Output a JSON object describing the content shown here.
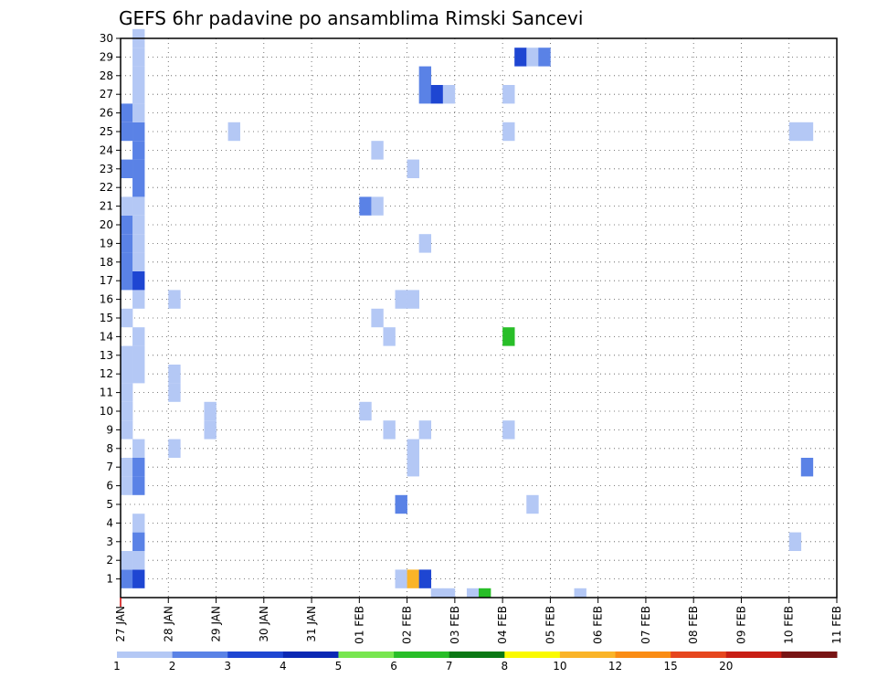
{
  "chart_data": {
    "type": "heatmap",
    "title": "GEFS 6hr padavine po ansamblima Rimski Sancevi",
    "x_tick_labels": [
      "27 JAN",
      "28 JAN",
      "29 JAN",
      "30 JAN",
      "31 JAN",
      "01 FEB",
      "02 FEB",
      "03 FEB",
      "04 FEB",
      "05 FEB",
      "06 FEB",
      "07 FEB",
      "08 FEB",
      "09 FEB",
      "10 FEB",
      "11 FEB"
    ],
    "y_tick_labels": [
      "1",
      "2",
      "3",
      "4",
      "5",
      "6",
      "7",
      "8",
      "9",
      "10",
      "11",
      "12",
      "13",
      "14",
      "15",
      "16",
      "17",
      "18",
      "19",
      "20",
      "21",
      "22",
      "23",
      "24",
      "25",
      "26",
      "27",
      "28",
      "29",
      "30"
    ],
    "xlim_6h_steps": [
      0,
      60
    ],
    "ylim_members": [
      0,
      30
    ],
    "grid": "dotted",
    "colorbar": {
      "position": "bottom",
      "labels": [
        "1",
        "2",
        "3",
        "4",
        "5",
        "6",
        "7",
        "8",
        "10",
        "12",
        "15",
        "20"
      ],
      "colors": [
        "#b4c8f5",
        "#5a82e6",
        "#1e46d2",
        "#0a28b4",
        "#78e650",
        "#28be28",
        "#0a7814",
        "#fafa00",
        "#fab428",
        "#fa8c14",
        "#e6461e",
        "#c81e14",
        "#781414"
      ]
    },
    "cells": [
      {
        "step": 0,
        "member": 1,
        "color": "#5a82e6"
      },
      {
        "step": 1,
        "member": 1,
        "color": "#1e46d2"
      },
      {
        "step": 0,
        "member": 2,
        "color": "#b4c8f5"
      },
      {
        "step": 1,
        "member": 2,
        "color": "#b4c8f5"
      },
      {
        "step": 1,
        "member": 3,
        "color": "#5a82e6"
      },
      {
        "step": 1,
        "member": 4,
        "color": "#b4c8f5"
      },
      {
        "step": 0,
        "member": 6,
        "color": "#b4c8f5"
      },
      {
        "step": 1,
        "member": 6,
        "color": "#5a82e6"
      },
      {
        "step": 0,
        "member": 7,
        "color": "#b4c8f5"
      },
      {
        "step": 1,
        "member": 7,
        "color": "#5a82e6"
      },
      {
        "step": 1,
        "member": 8,
        "color": "#b4c8f5"
      },
      {
        "step": 0,
        "member": 9,
        "color": "#b4c8f5"
      },
      {
        "step": 0,
        "member": 10,
        "color": "#b4c8f5"
      },
      {
        "step": 0,
        "member": 11,
        "color": "#b4c8f5"
      },
      {
        "step": 0,
        "member": 12,
        "color": "#b4c8f5"
      },
      {
        "step": 1,
        "member": 12,
        "color": "#b4c8f5"
      },
      {
        "step": 0,
        "member": 13,
        "color": "#b4c8f5"
      },
      {
        "step": 1,
        "member": 13,
        "color": "#b4c8f5"
      },
      {
        "step": 1,
        "member": 14,
        "color": "#b4c8f5"
      },
      {
        "step": 0,
        "member": 15,
        "color": "#b4c8f5"
      },
      {
        "step": 1,
        "member": 16,
        "color": "#b4c8f5"
      },
      {
        "step": 0,
        "member": 17,
        "color": "#5a82e6"
      },
      {
        "step": 1,
        "member": 17,
        "color": "#1e46d2"
      },
      {
        "step": 0,
        "member": 18,
        "color": "#5a82e6"
      },
      {
        "step": 1,
        "member": 18,
        "color": "#b4c8f5"
      },
      {
        "step": 0,
        "member": 19,
        "color": "#5a82e6"
      },
      {
        "step": 1,
        "member": 19,
        "color": "#b4c8f5"
      },
      {
        "step": 0,
        "member": 20,
        "color": "#5a82e6"
      },
      {
        "step": 1,
        "member": 20,
        "color": "#b4c8f5"
      },
      {
        "step": 0,
        "member": 21,
        "color": "#b4c8f5"
      },
      {
        "step": 1,
        "member": 21,
        "color": "#b4c8f5"
      },
      {
        "step": 1,
        "member": 22,
        "color": "#5a82e6"
      },
      {
        "step": 0,
        "member": 23,
        "color": "#5a82e6"
      },
      {
        "step": 1,
        "member": 23,
        "color": "#5a82e6"
      },
      {
        "step": 1,
        "member": 24,
        "color": "#5a82e6"
      },
      {
        "step": 0,
        "member": 25,
        "color": "#5a82e6"
      },
      {
        "step": 1,
        "member": 25,
        "color": "#5a82e6"
      },
      {
        "step": 0,
        "member": 26,
        "color": "#5a82e6"
      },
      {
        "step": 1,
        "member": 26,
        "color": "#b4c8f5"
      },
      {
        "step": 1,
        "member": 27,
        "color": "#b4c8f5"
      },
      {
        "step": 1,
        "member": 28,
        "color": "#b4c8f5"
      },
      {
        "step": 1,
        "member": 29,
        "color": "#b4c8f5"
      },
      {
        "step": 1,
        "member": 30,
        "color": "#b4c8f5"
      },
      {
        "step": 4,
        "member": 8,
        "color": "#b4c8f5"
      },
      {
        "step": 4,
        "member": 11,
        "color": "#b4c8f5"
      },
      {
        "step": 4,
        "member": 12,
        "color": "#b4c8f5"
      },
      {
        "step": 4,
        "member": 16,
        "color": "#b4c8f5"
      },
      {
        "step": 7,
        "member": 9,
        "color": "#b4c8f5"
      },
      {
        "step": 7,
        "member": 10,
        "color": "#b4c8f5"
      },
      {
        "step": 9,
        "member": 25,
        "color": "#b4c8f5"
      },
      {
        "step": 20,
        "member": 10,
        "color": "#b4c8f5"
      },
      {
        "step": 20,
        "member": 21,
        "color": "#5a82e6"
      },
      {
        "step": 21,
        "member": 21,
        "color": "#b4c8f5"
      },
      {
        "step": 21,
        "member": 15,
        "color": "#b4c8f5"
      },
      {
        "step": 21,
        "member": 24,
        "color": "#b4c8f5"
      },
      {
        "step": 22,
        "member": 9,
        "color": "#b4c8f5"
      },
      {
        "step": 22,
        "member": 14,
        "color": "#b4c8f5"
      },
      {
        "step": 23,
        "member": 1,
        "color": "#b4c8f5"
      },
      {
        "step": 24,
        "member": 1,
        "color": "#fab428"
      },
      {
        "step": 25,
        "member": 1,
        "color": "#1e46d2"
      },
      {
        "step": 23,
        "member": 5,
        "color": "#5a82e6"
      },
      {
        "step": 23,
        "member": 16,
        "color": "#b4c8f5"
      },
      {
        "step": 24,
        "member": 16,
        "color": "#b4c8f5"
      },
      {
        "step": 24,
        "member": 7,
        "color": "#b4c8f5"
      },
      {
        "step": 24,
        "member": 8,
        "color": "#b4c8f5"
      },
      {
        "step": 24,
        "member": 23,
        "color": "#b4c8f5"
      },
      {
        "step": 25,
        "member": 9,
        "color": "#b4c8f5"
      },
      {
        "step": 25,
        "member": 19,
        "color": "#b4c8f5"
      },
      {
        "step": 25,
        "member": 27,
        "color": "#5a82e6"
      },
      {
        "step": 25,
        "member": 28,
        "color": "#5a82e6"
      },
      {
        "step": 26,
        "member": 27,
        "color": "#1e46d2"
      },
      {
        "step": 27,
        "member": 27,
        "color": "#b4c8f5"
      },
      {
        "step": 26,
        "member": 0,
        "color": "#b4c8f5"
      },
      {
        "step": 27,
        "member": 0,
        "color": "#b4c8f5"
      },
      {
        "step": 29,
        "member": 0,
        "color": "#b4c8f5"
      },
      {
        "step": 30,
        "member": 0,
        "color": "#28be28"
      },
      {
        "step": 32,
        "member": 14,
        "color": "#28be28"
      },
      {
        "step": 32,
        "member": 9,
        "color": "#b4c8f5"
      },
      {
        "step": 32,
        "member": 25,
        "color": "#b4c8f5"
      },
      {
        "step": 32,
        "member": 27,
        "color": "#b4c8f5"
      },
      {
        "step": 33,
        "member": 29,
        "color": "#1e46d2"
      },
      {
        "step": 34,
        "member": 29,
        "color": "#b4c8f5"
      },
      {
        "step": 35,
        "member": 29,
        "color": "#5a82e6"
      },
      {
        "step": 34,
        "member": 5,
        "color": "#b4c8f5"
      },
      {
        "step": 38,
        "member": 0,
        "color": "#b4c8f5"
      },
      {
        "step": 56,
        "member": 25,
        "color": "#b4c8f5"
      },
      {
        "step": 57,
        "member": 25,
        "color": "#b4c8f5"
      },
      {
        "step": 56,
        "member": 3,
        "color": "#b4c8f5"
      },
      {
        "step": 57,
        "member": 7,
        "color": "#5a82e6"
      }
    ]
  }
}
